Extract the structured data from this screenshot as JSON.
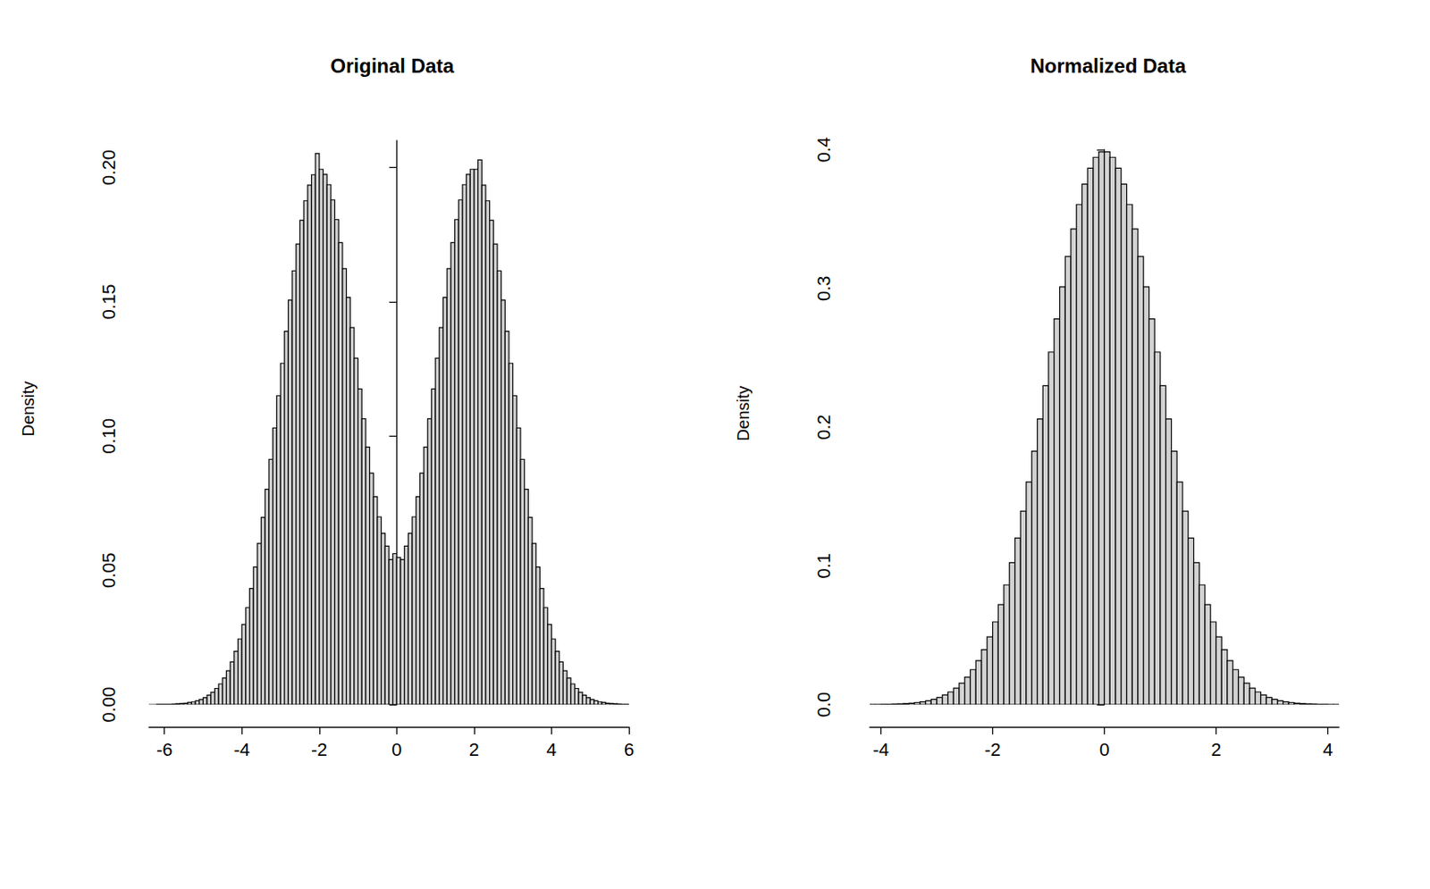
{
  "chart_data": [
    {
      "type": "histogram",
      "title": "Original Data",
      "ylabel": "Density",
      "color": "#d3d3d3",
      "bins": [
        -6.4,
        -6.3,
        -6.2,
        -6.1,
        -6,
        -5.9,
        -5.8,
        -5.7,
        -5.6,
        -5.5,
        -5.4,
        -5.3,
        -5.2,
        -5.1,
        -5,
        -4.9,
        -4.8,
        -4.7,
        -4.6,
        -4.5,
        -4.4,
        -4.3,
        -4.2,
        -4.1,
        -4,
        -3.9,
        -3.8,
        -3.7,
        -3.6,
        -3.5,
        -3.4,
        -3.3,
        -3.2,
        -3.1,
        -3,
        -2.9,
        -2.8,
        -2.7,
        -2.6,
        -2.5,
        -2.4,
        -2.3,
        -2.2,
        -2.1,
        -2,
        -1.9,
        -1.8,
        -1.7,
        -1.6,
        -1.5,
        -1.4,
        -1.3,
        -1.2,
        -1.1,
        -1,
        -0.9,
        -0.8,
        -0.7,
        -0.6,
        -0.5,
        -0.4,
        -0.3,
        -0.2,
        -0.1,
        0,
        0.1,
        0.2,
        0.3,
        0.4,
        0.5,
        0.6,
        0.7,
        0.8,
        0.9,
        1,
        1.1,
        1.2,
        1.3,
        1.4,
        1.5,
        1.6,
        1.7,
        1.8,
        1.9,
        2,
        2.1,
        2.2,
        2.3,
        2.4,
        2.5,
        2.6,
        2.7,
        2.8,
        2.9,
        3,
        3.1,
        3.2,
        3.3,
        3.4,
        3.5,
        3.6,
        3.7,
        3.8,
        3.9,
        4,
        4.1,
        4.2,
        4.3,
        4.4,
        4.5,
        4.6,
        4.7,
        4.8,
        4.9,
        5,
        5.1,
        5.2,
        5.3,
        5.4,
        5.5,
        5.6,
        5.7,
        5.8,
        5.9,
        6
      ],
      "values": [
        0,
        0,
        0.0001,
        0.0001,
        0.0001,
        0.0001,
        0.0002,
        0.0003,
        0.0004,
        0.0005,
        0.0008,
        0.001,
        0.0014,
        0.0019,
        0.0026,
        0.0035,
        0.0046,
        0.006,
        0.0077,
        0.0099,
        0.0126,
        0.0159,
        0.0198,
        0.0244,
        0.0298,
        0.0361,
        0.0432,
        0.0512,
        0.06,
        0.0697,
        0.0802,
        0.0913,
        0.103,
        0.115,
        0.1271,
        0.139,
        0.1506,
        0.1615,
        0.1715,
        0.1803,
        0.1876,
        0.1934,
        0.1973,
        0.2052,
        0.1993,
        0.1974,
        0.1936,
        0.1879,
        0.1806,
        0.172,
        0.1623,
        0.1516,
        0.1404,
        0.129,
        0.1175,
        0.1064,
        0.0959,
        0.0862,
        0.0774,
        0.0699,
        0.0638,
        0.059,
        0.054,
        0.0562,
        0.0548,
        0.054,
        0.059,
        0.0638,
        0.0699,
        0.0774,
        0.0862,
        0.0959,
        0.1064,
        0.1175,
        0.129,
        0.1404,
        0.1516,
        0.1623,
        0.172,
        0.1806,
        0.1879,
        0.1936,
        0.1974,
        0.1993,
        0.1993,
        0.2028,
        0.1934,
        0.1876,
        0.1803,
        0.1715,
        0.1615,
        0.1506,
        0.139,
        0.1271,
        0.115,
        0.103,
        0.0913,
        0.0802,
        0.0697,
        0.06,
        0.0512,
        0.0432,
        0.0361,
        0.0298,
        0.0244,
        0.0198,
        0.0159,
        0.0126,
        0.0099,
        0.0077,
        0.006,
        0.0046,
        0.0035,
        0.0026,
        0.0019,
        0.0014,
        0.001,
        0.0008,
        0.0005,
        0.0004,
        0.0003,
        0.0002,
        0.0001,
        0.0001
      ],
      "xlim": [
        -6.4,
        6
      ],
      "xticks": [
        -6,
        -4,
        -2,
        0,
        2,
        4,
        6
      ],
      "ylim": [
        0,
        0.21
      ],
      "yticks": [
        {
          "value": 0,
          "label": "0.00"
        },
        {
          "value": 0.05,
          "label": "0.05"
        },
        {
          "value": 0.1,
          "label": "0.10"
        },
        {
          "value": 0.15,
          "label": "0.15"
        },
        {
          "value": 0.2,
          "label": "0.20"
        }
      ]
    },
    {
      "type": "histogram",
      "title": "Normalized Data",
      "ylabel": "Density",
      "color": "#d3d3d3",
      "bins": [
        -4.2,
        -4.1,
        -4,
        -3.9,
        -3.8,
        -3.7,
        -3.6,
        -3.5,
        -3.4,
        -3.3,
        -3.2,
        -3.1,
        -3,
        -2.9,
        -2.8,
        -2.7,
        -2.6,
        -2.5,
        -2.4,
        -2.3,
        -2.2,
        -2.1,
        -2,
        -1.9,
        -1.8,
        -1.7,
        -1.6,
        -1.5,
        -1.4,
        -1.3,
        -1.2,
        -1.1,
        -1,
        -0.9,
        -0.8,
        -0.7,
        -0.6,
        -0.5,
        -0.4,
        -0.3,
        -0.2,
        -0.1,
        0,
        0.1,
        0.2,
        0.3,
        0.4,
        0.5,
        0.6,
        0.7,
        0.8,
        0.9,
        1,
        1.1,
        1.2,
        1.3,
        1.4,
        1.5,
        1.6,
        1.7,
        1.8,
        1.9,
        2,
        2.1,
        2.2,
        2.3,
        2.4,
        2.5,
        2.6,
        2.7,
        2.8,
        2.9,
        3,
        3.1,
        3.2,
        3.3,
        3.4,
        3.5,
        3.6,
        3.7,
        3.8,
        3.9,
        4,
        4.1,
        4.2
      ],
      "values": [
        0.0001,
        0.0001,
        0.0002,
        0.0002,
        0.0004,
        0.0005,
        0.0007,
        0.001,
        0.0015,
        0.002,
        0.0028,
        0.0038,
        0.0051,
        0.0069,
        0.0091,
        0.0119,
        0.0154,
        0.0198,
        0.0252,
        0.0317,
        0.0396,
        0.0488,
        0.0596,
        0.0721,
        0.0863,
        0.1023,
        0.12,
        0.1394,
        0.1604,
        0.1826,
        0.2059,
        0.2299,
        0.2541,
        0.278,
        0.3011,
        0.323,
        0.3429,
        0.3605,
        0.3752,
        0.3867,
        0.3945,
        0.3984,
        0.3984,
        0.3945,
        0.3867,
        0.3752,
        0.3605,
        0.3429,
        0.323,
        0.3011,
        0.278,
        0.2541,
        0.2299,
        0.2059,
        0.1826,
        0.1604,
        0.1394,
        0.12,
        0.1023,
        0.0863,
        0.0721,
        0.0596,
        0.0488,
        0.0396,
        0.0317,
        0.0252,
        0.0198,
        0.0154,
        0.0119,
        0.0091,
        0.0069,
        0.0051,
        0.0038,
        0.0028,
        0.002,
        0.0015,
        0.001,
        0.0007,
        0.0005,
        0.0004,
        0.0002,
        0.0002,
        0.0001,
        0.0001
      ],
      "xlim": [
        -4.2,
        4.2
      ],
      "xticks": [
        -4,
        -2,
        0,
        2,
        4
      ],
      "ylim": [
        0,
        0.4
      ],
      "yticks": [
        {
          "value": 0,
          "label": "0.0"
        },
        {
          "value": 0.1,
          "label": "0.1"
        },
        {
          "value": 0.2,
          "label": "0.2"
        },
        {
          "value": 0.3,
          "label": "0.3"
        },
        {
          "value": 0.4,
          "label": "0.4"
        }
      ]
    }
  ]
}
